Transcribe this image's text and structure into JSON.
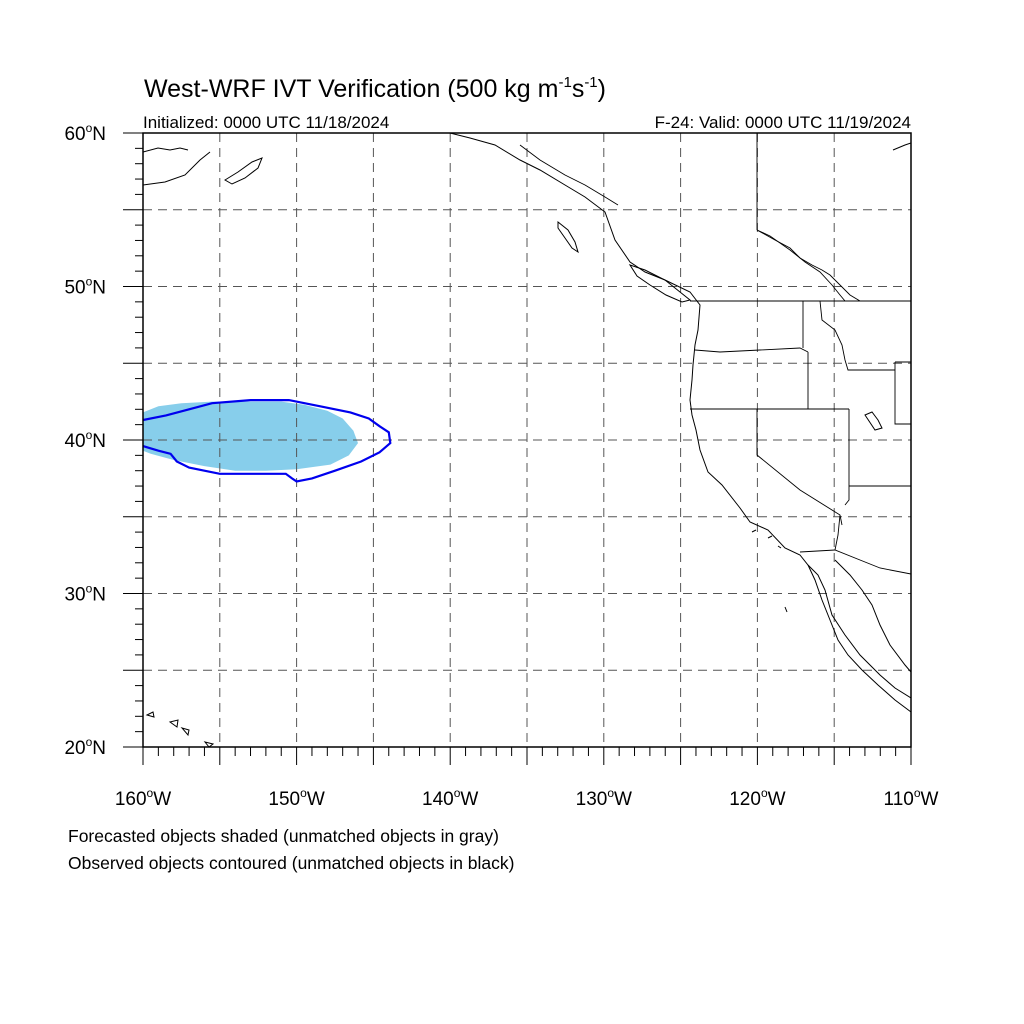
{
  "title": {
    "main_prefix": "West-WRF IVT Verification (500 kg m",
    "sup1": "-1",
    "mid": "s",
    "sup2": "-1",
    "end": ")"
  },
  "initialized": "Initialized: 0000 UTC 11/18/2024",
  "valid": "F-24: Valid: 0000 UTC 11/19/2024",
  "map": {
    "lon_range": [
      -160,
      -110
    ],
    "lat_range": [
      20,
      60
    ],
    "lat_labels": [
      "20",
      "30",
      "40",
      "50",
      "60"
    ],
    "lat_suffix": "N",
    "lon_labels": [
      "160",
      "150",
      "140",
      "130",
      "120",
      "110"
    ],
    "lon_suffix": "W",
    "degree_symbol": "o",
    "grid_spacing_deg": 5,
    "grid_style": "dashed",
    "colors": {
      "forecast_fill": "#87CEEB",
      "observed_contour": "#0000ee",
      "coastline": "#000000",
      "gridline": "#555555"
    },
    "forecast_object": {
      "matched": true,
      "lon_lat": [
        [
          -160.0,
          41.8
        ],
        [
          -159.0,
          42.2
        ],
        [
          -157.5,
          42.4
        ],
        [
          -155.5,
          42.5
        ],
        [
          -153.0,
          42.5
        ],
        [
          -151.0,
          42.5
        ],
        [
          -149.5,
          42.3
        ],
        [
          -148.0,
          41.9
        ],
        [
          -147.0,
          41.4
        ],
        [
          -146.3,
          40.6
        ],
        [
          -146.0,
          39.8
        ],
        [
          -146.6,
          39.0
        ],
        [
          -147.8,
          38.4
        ],
        [
          -150.0,
          38.1
        ],
        [
          -152.0,
          38.0
        ],
        [
          -154.0,
          38.0
        ],
        [
          -156.0,
          38.3
        ],
        [
          -158.0,
          38.7
        ],
        [
          -159.5,
          39.1
        ],
        [
          -160.0,
          39.3
        ]
      ]
    },
    "observed_object": {
      "matched": true,
      "lon_lat": [
        [
          -160.0,
          41.3
        ],
        [
          -158.5,
          41.6
        ],
        [
          -157.0,
          42.0
        ],
        [
          -155.5,
          42.4
        ],
        [
          -153.0,
          42.6
        ],
        [
          -150.5,
          42.6
        ],
        [
          -148.5,
          42.2
        ],
        [
          -146.5,
          41.8
        ],
        [
          -145.3,
          41.4
        ],
        [
          -144.6,
          40.9
        ],
        [
          -144.0,
          40.5
        ],
        [
          -143.9,
          39.8
        ],
        [
          -144.6,
          39.2
        ],
        [
          -145.8,
          38.6
        ],
        [
          -147.5,
          38.0
        ],
        [
          -149.0,
          37.5
        ],
        [
          -150.0,
          37.3
        ],
        [
          -150.3,
          37.5
        ],
        [
          -150.7,
          37.8
        ],
        [
          -152.0,
          37.8
        ],
        [
          -155.0,
          37.8
        ],
        [
          -156.0,
          38.0
        ],
        [
          -157.0,
          38.2
        ],
        [
          -157.8,
          38.6
        ],
        [
          -158.2,
          39.1
        ],
        [
          -159.0,
          39.3
        ],
        [
          -160.0,
          39.6
        ]
      ]
    }
  },
  "footnotes": {
    "line1": "Forecasted objects shaded (unmatched objects in gray)",
    "line2": "Observed objects contoured (unmatched objects in black)"
  }
}
